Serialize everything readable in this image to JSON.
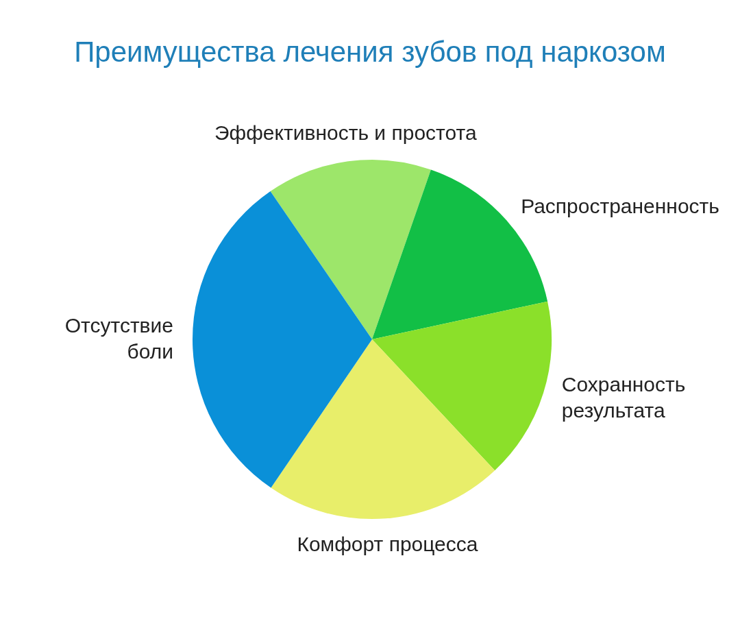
{
  "chart_data": {
    "type": "pie",
    "title": "Преимущества лечения зубов под наркозом",
    "categories": [
      "Эффективность и простота",
      "Распространенность",
      "Сохранность результата",
      "Комфорт процесса",
      "Отсутствие боли"
    ],
    "values": [
      14.9,
      16.3,
      16.4,
      21.5,
      30.9
    ],
    "colors": [
      "#9de66a",
      "#12bf46",
      "#8be02a",
      "#e8ee6a",
      "#0a90d8"
    ],
    "legend": false
  }
}
